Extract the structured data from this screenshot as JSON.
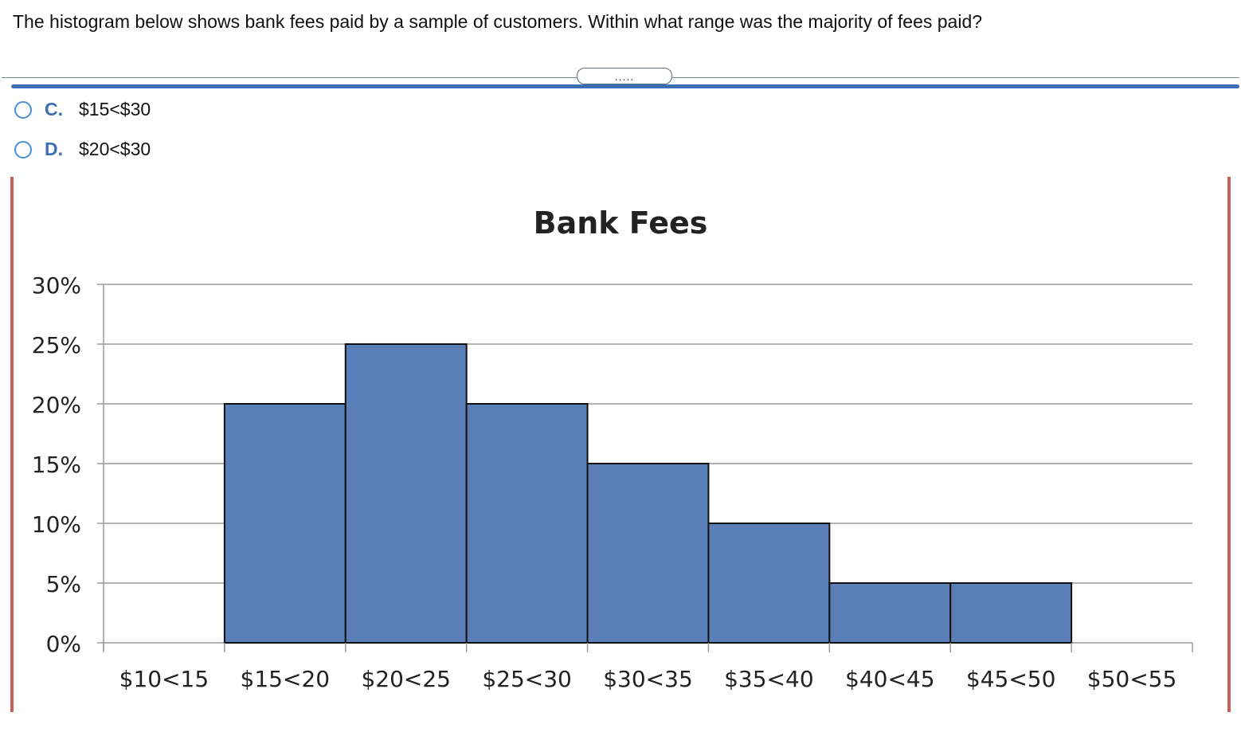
{
  "question": {
    "text": "The histogram below shows bank fees paid by a sample of customers. Within what range was the majority of fees paid?"
  },
  "expander": {
    "label": "....."
  },
  "options": [
    {
      "letter": "C.",
      "text": "$15<$30"
    },
    {
      "letter": "D.",
      "text": "$20<$30"
    }
  ],
  "colors": {
    "bar": "#5a7fb8",
    "accent": "#3a6fb5",
    "frame": "#c9605b"
  },
  "chart_data": {
    "type": "bar",
    "title": "Bank Fees",
    "xlabel": "",
    "ylabel": "",
    "categories": [
      "$10<15",
      "$15<20",
      "$20<25",
      "$25<30",
      "$30<35",
      "$35<40",
      "$40<45",
      "$45<50",
      "$50<55"
    ],
    "values": [
      0,
      20,
      25,
      20,
      15,
      10,
      5,
      5,
      0
    ],
    "ylim": [
      0,
      30
    ],
    "yticks": [
      "0%",
      "5%",
      "10%",
      "15%",
      "20%",
      "25%",
      "30%"
    ],
    "grid": true,
    "legend": "none"
  }
}
